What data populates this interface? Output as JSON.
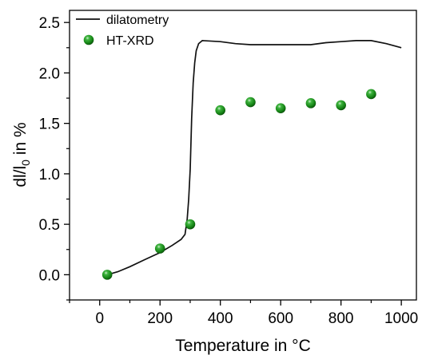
{
  "chart_data": {
    "type": "scatter",
    "xlabel": "Temperature in °C",
    "ylabel": {
      "main": "dl/l",
      "subscript": "0",
      "suffix": " in %"
    },
    "xlim": [
      -100,
      1050
    ],
    "ylim": [
      -0.25,
      2.62
    ],
    "x_ticks": [
      0,
      200,
      400,
      600,
      800,
      1000
    ],
    "y_ticks": [
      0.0,
      0.5,
      1.0,
      1.5,
      2.0,
      2.5
    ],
    "x_tick_labels": [
      "0",
      "200",
      "400",
      "600",
      "800",
      "1000"
    ],
    "y_tick_labels": [
      "0.0",
      "0.5",
      "1.0",
      "1.5",
      "2.0",
      "2.5"
    ],
    "grid": false,
    "legend_position": "top-left",
    "colors": {
      "line": "#111111",
      "marker": "#1a8a1a",
      "marker_dark": "#0a4d0a",
      "marker_light": "#9be29b"
    },
    "series": [
      {
        "name": "dilatometry",
        "kind": "line",
        "points": [
          [
            25,
            0.0
          ],
          [
            60,
            0.03
          ],
          [
            100,
            0.08
          ],
          [
            150,
            0.15
          ],
          [
            200,
            0.22
          ],
          [
            240,
            0.29
          ],
          [
            270,
            0.35
          ],
          [
            283,
            0.4
          ],
          [
            290,
            0.55
          ],
          [
            295,
            0.75
          ],
          [
            300,
            1.05
          ],
          [
            305,
            1.55
          ],
          [
            310,
            1.9
          ],
          [
            315,
            2.1
          ],
          [
            320,
            2.22
          ],
          [
            328,
            2.29
          ],
          [
            340,
            2.32
          ],
          [
            400,
            2.31
          ],
          [
            450,
            2.29
          ],
          [
            500,
            2.28
          ],
          [
            600,
            2.28
          ],
          [
            700,
            2.28
          ],
          [
            750,
            2.3
          ],
          [
            800,
            2.31
          ],
          [
            850,
            2.32
          ],
          [
            900,
            2.32
          ],
          [
            950,
            2.29
          ],
          [
            1000,
            2.25
          ]
        ]
      },
      {
        "name": "HT-XRD",
        "kind": "scatter",
        "points": [
          [
            25,
            0.0
          ],
          [
            200,
            0.26
          ],
          [
            300,
            0.5
          ],
          [
            400,
            1.63
          ],
          [
            500,
            1.71
          ],
          [
            600,
            1.65
          ],
          [
            700,
            1.7
          ],
          [
            800,
            1.68
          ],
          [
            900,
            1.79
          ]
        ]
      }
    ]
  }
}
